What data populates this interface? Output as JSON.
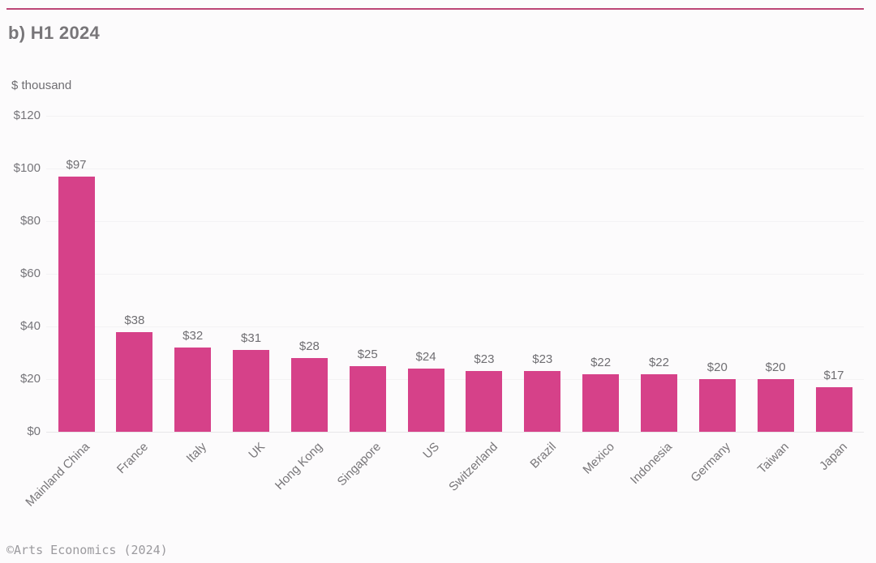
{
  "page": {
    "title": "b) H1 2024"
  },
  "colors": {
    "bar": "#d64189",
    "accent_line": "#bc4576",
    "background": "#fcfbfc",
    "text_gray": "#6f6e72"
  },
  "chart_data": {
    "type": "bar",
    "title": "b) H1 2024",
    "unit_label": "$ thousand",
    "categories": [
      "Mainland China",
      "France",
      "Italy",
      "UK",
      "Hong Kong",
      "Singapore",
      "US",
      "Switzerland",
      "Brazil",
      "Mexico",
      "Indonesia",
      "Germany",
      "Taiwan",
      "Japan"
    ],
    "values": [
      97,
      38,
      32,
      31,
      28,
      25,
      24,
      23,
      23,
      22,
      22,
      20,
      20,
      17
    ],
    "value_labels": [
      "$97",
      "$38",
      "$32",
      "$31",
      "$28",
      "$25",
      "$24",
      "$23",
      "$23",
      "$22",
      "$22",
      "$20",
      "$20",
      "$17"
    ],
    "xlabel": "",
    "ylabel": "$ thousand",
    "ylim": [
      0,
      120
    ],
    "ytick_step": 20,
    "ytick_labels": [
      "$0",
      "$20",
      "$40",
      "$60",
      "$80",
      "$100",
      "$120"
    ],
    "grid": true,
    "legend": "none",
    "bar_color": "#d64189"
  },
  "footer": {
    "credit": "©Arts Economics (2024)"
  }
}
